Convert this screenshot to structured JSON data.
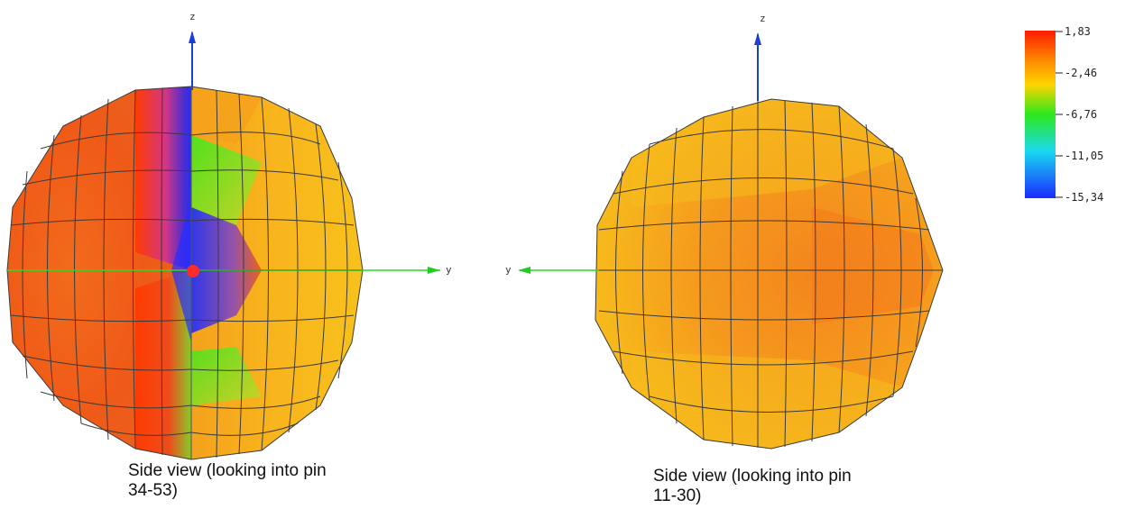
{
  "colors": {
    "axis": "#1f9d1f",
    "axis_bright": "#22dd22",
    "z_axis": "#1a3fd6",
    "mesh": "#333333",
    "origin_dot": "#ff2a2a",
    "red": "#ff2a00",
    "orange": "#f7851d",
    "yellow": "#f9c21b",
    "green": "#35e81b",
    "cyan": "#1dd9f0",
    "blue": "#1a2bff"
  },
  "legend": {
    "ticks": [
      "1,83",
      "-2,46",
      "-6,76",
      "-11,05",
      "-15,34"
    ]
  },
  "views": [
    {
      "z_label": "z",
      "y_label": "y",
      "caption_line1": "Side view (looking into pin",
      "caption_line2": "34-53)"
    },
    {
      "z_label": "z",
      "y_label": "y",
      "caption_line1": "Side view (looking into pin",
      "caption_line2": "11-30)"
    }
  ]
}
